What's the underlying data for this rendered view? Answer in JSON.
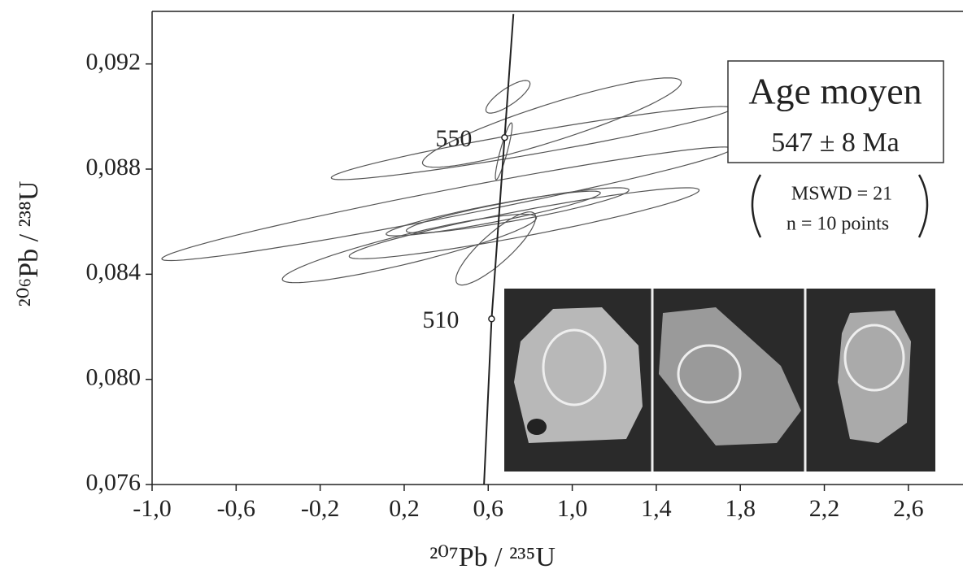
{
  "chart_data": {
    "type": "concordia",
    "xlabel": "²⁰⁷Pb / ²³⁵U",
    "ylabel": "²⁰⁶Pb / ²³⁸U",
    "xlim": [
      -1.0,
      2.86
    ],
    "ylim": [
      0.076,
      0.094
    ],
    "xticks": [
      {
        "value": -1.0,
        "label": "-1,0"
      },
      {
        "value": -0.6,
        "label": "-0,6"
      },
      {
        "value": -0.2,
        "label": "-0,2"
      },
      {
        "value": 0.2,
        "label": "0,2"
      },
      {
        "value": 0.6,
        "label": "0,6"
      },
      {
        "value": 1.0,
        "label": "1,0"
      },
      {
        "value": 1.4,
        "label": "1,4"
      },
      {
        "value": 1.8,
        "label": "1,8"
      },
      {
        "value": 2.2,
        "label": "2,2"
      },
      {
        "value": 2.6,
        "label": "2,6"
      }
    ],
    "yticks": [
      {
        "value": 0.076,
        "label": "0,076"
      },
      {
        "value": 0.08,
        "label": "0,080"
      },
      {
        "value": 0.084,
        "label": "0,084"
      },
      {
        "value": 0.088,
        "label": "0,088"
      },
      {
        "value": 0.092,
        "label": "0,092"
      }
    ],
    "concordia": {
      "color": "#222",
      "x": [
        0.58,
        0.616,
        0.678,
        0.72
      ],
      "y": [
        0.076,
        0.0823,
        0.0892,
        0.0939
      ]
    },
    "age_marks": [
      {
        "label": "550",
        "x": 0.678,
        "y": 0.0892
      },
      {
        "label": "510",
        "x": 0.616,
        "y": 0.0823
      }
    ],
    "ellipse_color": "#555",
    "ellipses": [
      {
        "x": 0.403,
        "y": 0.08668,
        "sx": 1.357,
        "sy": 0.00216,
        "rho": 0.97
      },
      {
        "x": 0.806,
        "y": 0.08899,
        "sx": 0.953,
        "sy": 0.00139,
        "rho": 0.95
      },
      {
        "x": 0.903,
        "y": 0.08977,
        "sx": 0.616,
        "sy": 0.0017,
        "rho": 0.9
      },
      {
        "x": 0.694,
        "y": 0.09075,
        "sx": 0.105,
        "sy": 0.00062,
        "rho": 0.8
      },
      {
        "x": 0.674,
        "y": 0.08868,
        "sx": 0.04,
        "sy": 0.00108,
        "rho": 0.9
      },
      {
        "x": 0.74,
        "y": 0.08643,
        "sx": 0.53,
        "sy": 0.00086,
        "rho": 0.9
      },
      {
        "x": 0.624,
        "y": 0.08631,
        "sx": 0.51,
        "sy": 0.00085,
        "rho": 0.92
      },
      {
        "x": 0.771,
        "y": 0.08594,
        "sx": 0.833,
        "sy": 0.00135,
        "rho": 0.93
      },
      {
        "x": 0.225,
        "y": 0.08498,
        "sx": 0.605,
        "sy": 0.0013,
        "rho": 0.9
      },
      {
        "x": 0.636,
        "y": 0.08498,
        "sx": 0.19,
        "sy": 0.00139,
        "rho": 0.85
      }
    ],
    "result_box": {
      "title": "Age moyen",
      "age": "547 ± 8 Ma",
      "mswd": "MSWD = 21",
      "n": "n = 10 points"
    }
  }
}
